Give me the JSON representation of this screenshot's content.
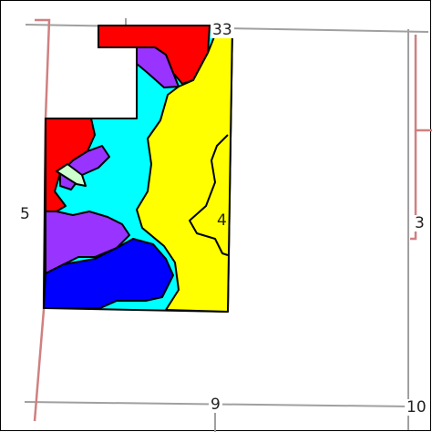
{
  "map": {
    "colors": {
      "red": "#ff0000",
      "violet": "#9933ff",
      "cyan": "#00ffff",
      "yellow": "#ffff00",
      "blue": "#0000ff",
      "pale_green": "#ccffcc",
      "section_line": "#a0a0a0",
      "road": "#d08080",
      "outline": "#000000"
    },
    "section_labels": {
      "top": "33",
      "left": "5",
      "center": "4",
      "right": "3",
      "bottom": "9",
      "bottom_right": "10"
    }
  }
}
